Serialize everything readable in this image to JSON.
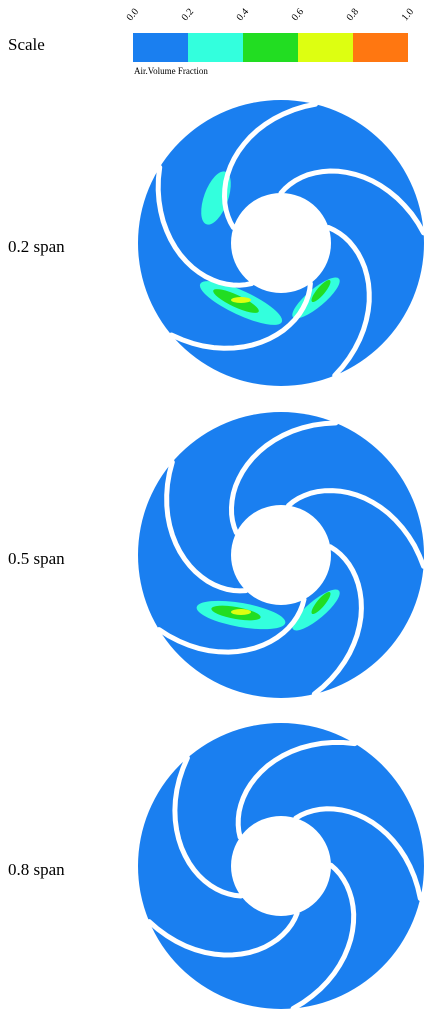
{
  "scale_label": "Scale",
  "colorbar": {
    "ticks": [
      "0.0",
      "0.2",
      "0.4",
      "0.6",
      "0.8",
      "1.0"
    ],
    "title": "Air.Volume Fraction",
    "colors": [
      "#1a7ff0",
      "#33ffdd",
      "#22dd22",
      "#ddff11",
      "#ff7711"
    ]
  },
  "panels": [
    {
      "label": "0.2 span"
    },
    {
      "label": "0.5 span"
    },
    {
      "label": "0.8 span"
    }
  ]
}
